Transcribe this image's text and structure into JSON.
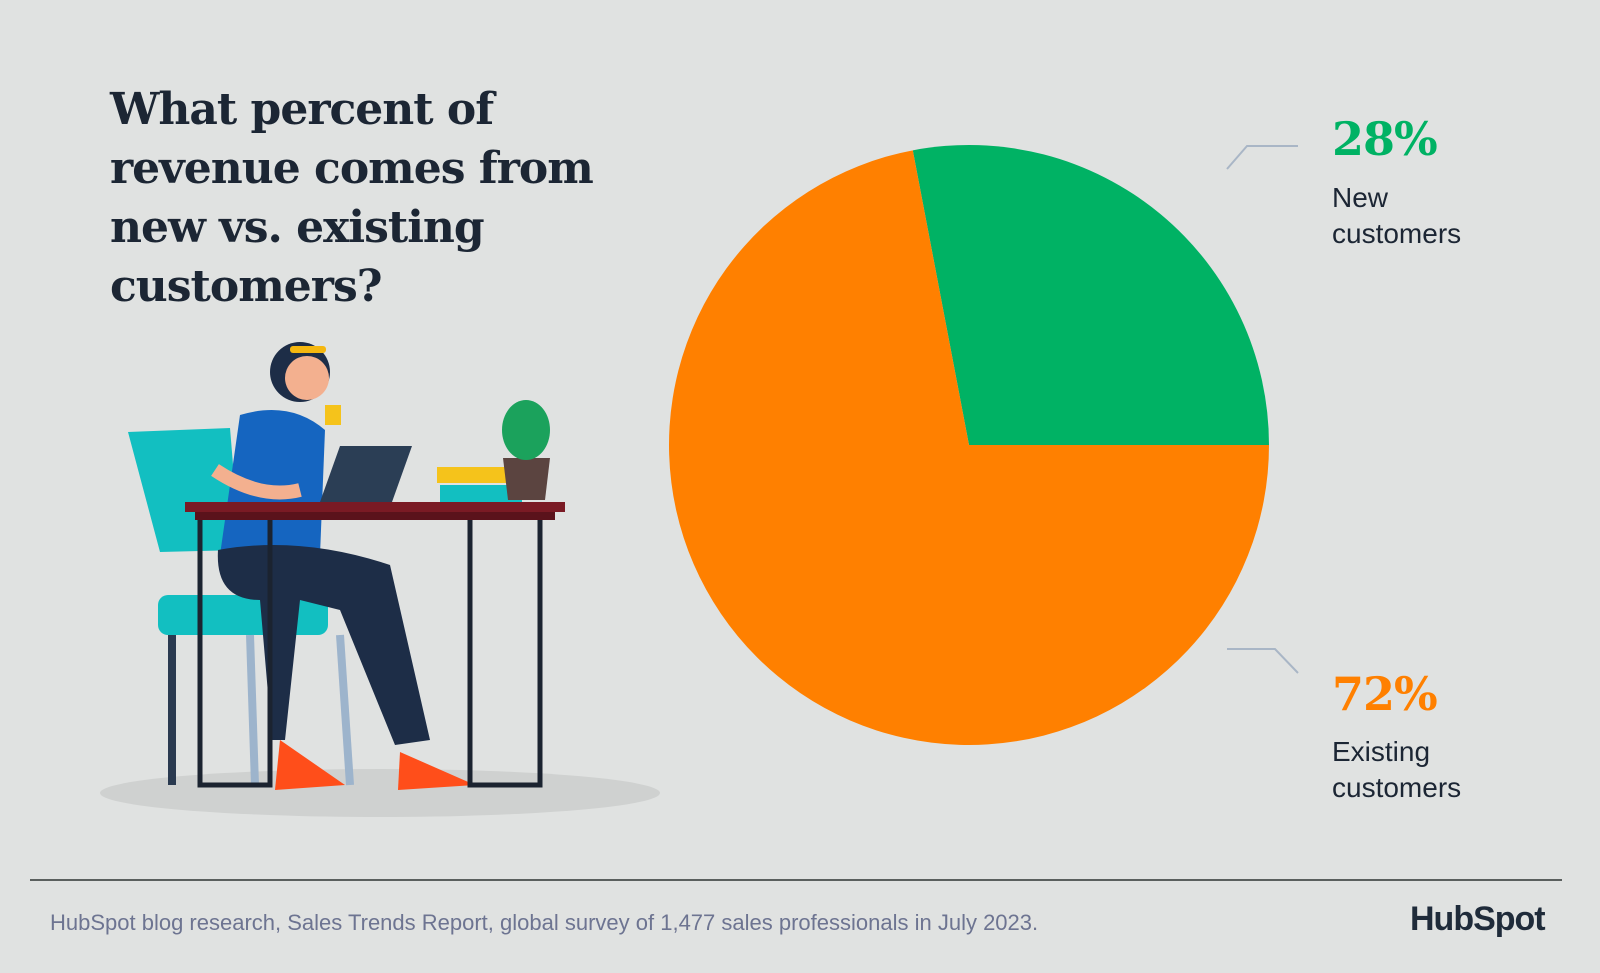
{
  "chart_data": {
    "type": "pie",
    "title": "What percent of revenue comes from new vs. existing customers?",
    "slices": [
      {
        "label": "New customers",
        "value": 28,
        "value_label": "28%",
        "color": "#00b264"
      },
      {
        "label": "Existing customers",
        "value": 72,
        "value_label": "72%",
        "color": "#ff8000"
      }
    ]
  },
  "labels": {
    "new_line1": "New",
    "new_line2": "customers",
    "existing_line1": "Existing",
    "existing_line2": "customers"
  },
  "footer": {
    "source": "HubSpot blog research, Sales Trends Report, global survey of 1,477 sales professionals in July 2023.",
    "logo": "HubSpot"
  }
}
